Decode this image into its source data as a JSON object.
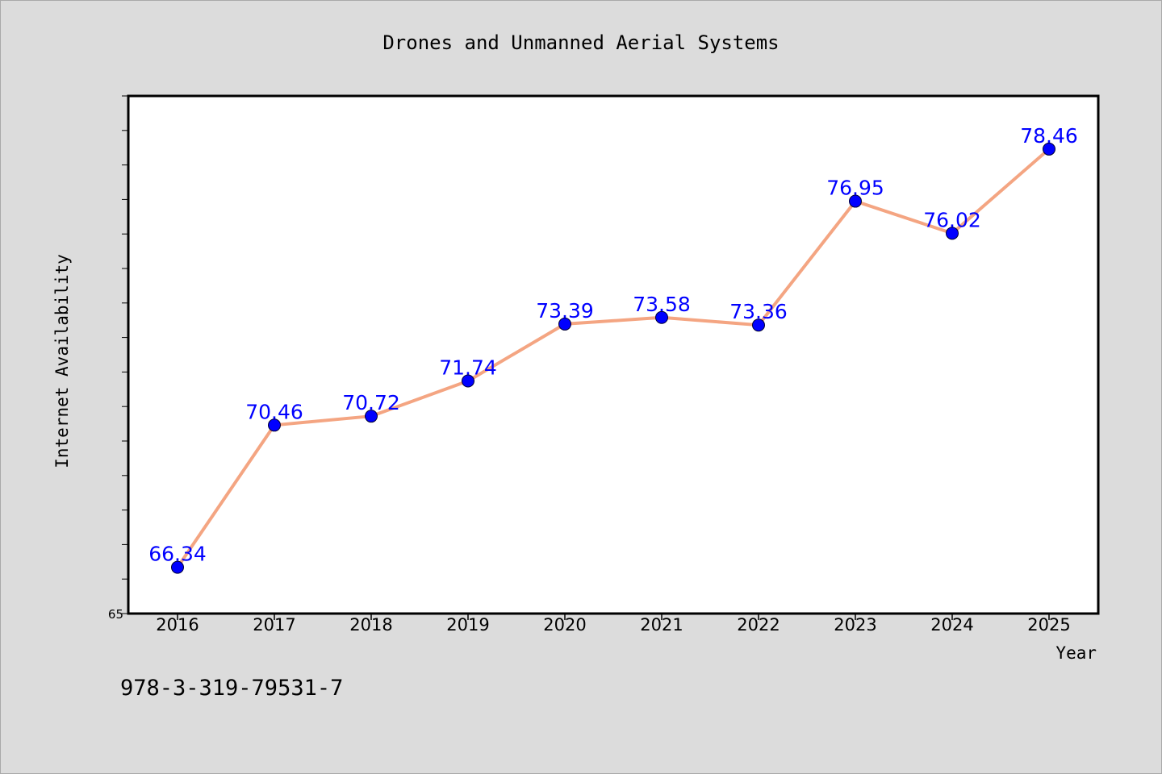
{
  "chart_data": {
    "type": "line",
    "title": "Drones and Unmanned Aerial Systems",
    "xlabel": "Year",
    "ylabel": "Internet Availability",
    "categories": [
      "2016",
      "2017",
      "2018",
      "2019",
      "2020",
      "2021",
      "2022",
      "2023",
      "2024",
      "2025"
    ],
    "series": [
      {
        "values": [
          66.34,
          70.46,
          70.72,
          71.74,
          73.39,
          73.58,
          73.36,
          76.95,
          76.02,
          78.46
        ]
      }
    ],
    "ylim": [
      65,
      80
    ],
    "yticks_labeled": [
      "65"
    ],
    "line_color": "#f4a582",
    "marker_color": "#0000ff",
    "label_color": "#0000ff",
    "grid": false,
    "legend": "none"
  },
  "footer": {
    "isbn": "978-3-319-79531-7"
  }
}
